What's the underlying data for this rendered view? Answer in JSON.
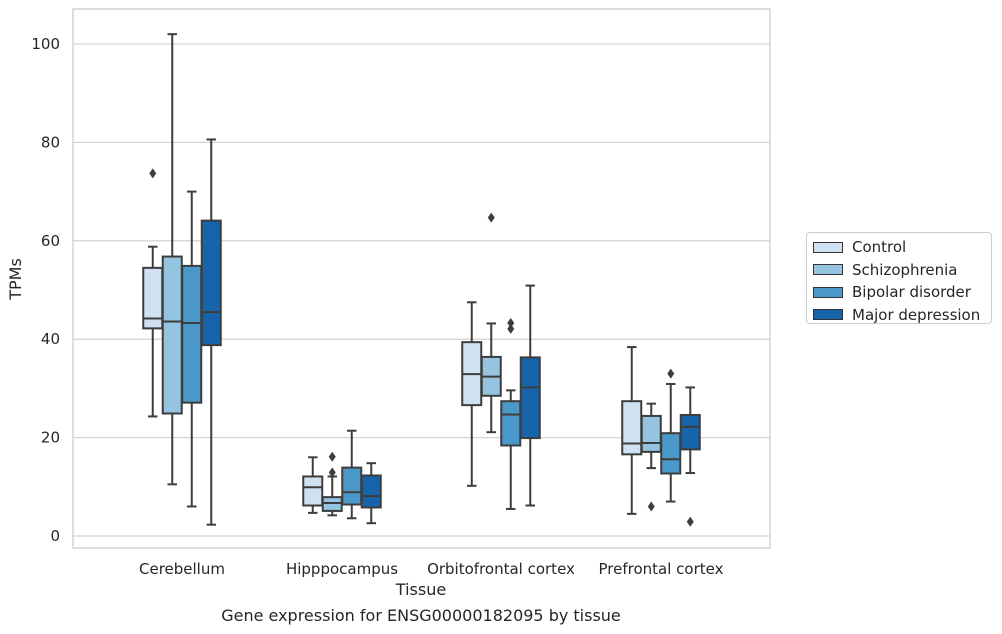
{
  "chart_data": {
    "type": "box",
    "title": "Gene expression for ENSG00000182095 by tissue",
    "xlabel": "Tissue",
    "ylabel": "TPMs",
    "ylim": [
      -2,
      107
    ],
    "yticks": [
      0,
      20,
      40,
      60,
      80,
      100
    ],
    "grid": "horizontal",
    "legend_position": "right",
    "categories": [
      "Cerebellum",
      "Hipppocampus",
      "Orbitofrontal cortex",
      "Prefrontal cortex"
    ],
    "series": [
      {
        "name": "Control",
        "color": "#d0e1f2",
        "boxes": [
          {
            "whislo": 24.3,
            "q1": 42.2,
            "med": 44.2,
            "q3": 54.5,
            "whishi": 58.8,
            "fliers": [
              73.7
            ]
          },
          {
            "whislo": 4.7,
            "q1": 6.2,
            "med": 9.9,
            "q3": 12.1,
            "whishi": 16.0,
            "fliers": []
          },
          {
            "whislo": 10.2,
            "q1": 26.6,
            "med": 32.9,
            "q3": 39.4,
            "whishi": 47.5,
            "fliers": []
          },
          {
            "whislo": 4.5,
            "q1": 16.6,
            "med": 18.8,
            "q3": 27.4,
            "whishi": 38.4,
            "fliers": []
          }
        ]
      },
      {
        "name": "Schizophrenia",
        "color": "#94c4df",
        "boxes": [
          {
            "whislo": 10.5,
            "q1": 24.9,
            "med": 43.6,
            "q3": 56.8,
            "whishi": 102.0,
            "fliers": []
          },
          {
            "whislo": 4.2,
            "q1": 5.1,
            "med": 6.7,
            "q3": 7.9,
            "whishi": 12.1,
            "fliers": [
              12.9,
              16.1
            ]
          },
          {
            "whislo": 21.1,
            "q1": 28.5,
            "med": 32.4,
            "q3": 36.4,
            "whishi": 43.2,
            "fliers": [
              64.7
            ]
          },
          {
            "whislo": 13.8,
            "q1": 17.1,
            "med": 18.9,
            "q3": 24.4,
            "whishi": 26.9,
            "fliers": [
              6.0
            ]
          }
        ]
      },
      {
        "name": "Bipolar disorder",
        "color": "#4a98c9",
        "boxes": [
          {
            "whislo": 6.0,
            "q1": 27.1,
            "med": 43.3,
            "q3": 54.9,
            "whishi": 70.0,
            "fliers": []
          },
          {
            "whislo": 3.6,
            "q1": 6.4,
            "med": 8.9,
            "q3": 13.9,
            "whishi": 21.4,
            "fliers": []
          },
          {
            "whislo": 5.5,
            "q1": 18.4,
            "med": 24.7,
            "q3": 27.4,
            "whishi": 29.6,
            "fliers": [
              42.1,
              43.3
            ]
          },
          {
            "whislo": 7.0,
            "q1": 12.7,
            "med": 15.6,
            "q3": 20.9,
            "whishi": 30.9,
            "fliers": [
              33.0
            ]
          }
        ]
      },
      {
        "name": "Major depression",
        "color": "#1764ab",
        "boxes": [
          {
            "whislo": 2.3,
            "q1": 38.8,
            "med": 45.5,
            "q3": 64.1,
            "whishi": 80.6,
            "fliers": []
          },
          {
            "whislo": 2.6,
            "q1": 5.8,
            "med": 8.1,
            "q3": 12.3,
            "whishi": 14.8,
            "fliers": []
          },
          {
            "whislo": 6.2,
            "q1": 19.9,
            "med": 30.2,
            "q3": 36.3,
            "whishi": 50.9,
            "fliers": []
          },
          {
            "whislo": 12.8,
            "q1": 17.6,
            "med": 22.2,
            "q3": 24.6,
            "whishi": 30.2,
            "fliers": [
              2.9
            ]
          }
        ]
      }
    ]
  }
}
